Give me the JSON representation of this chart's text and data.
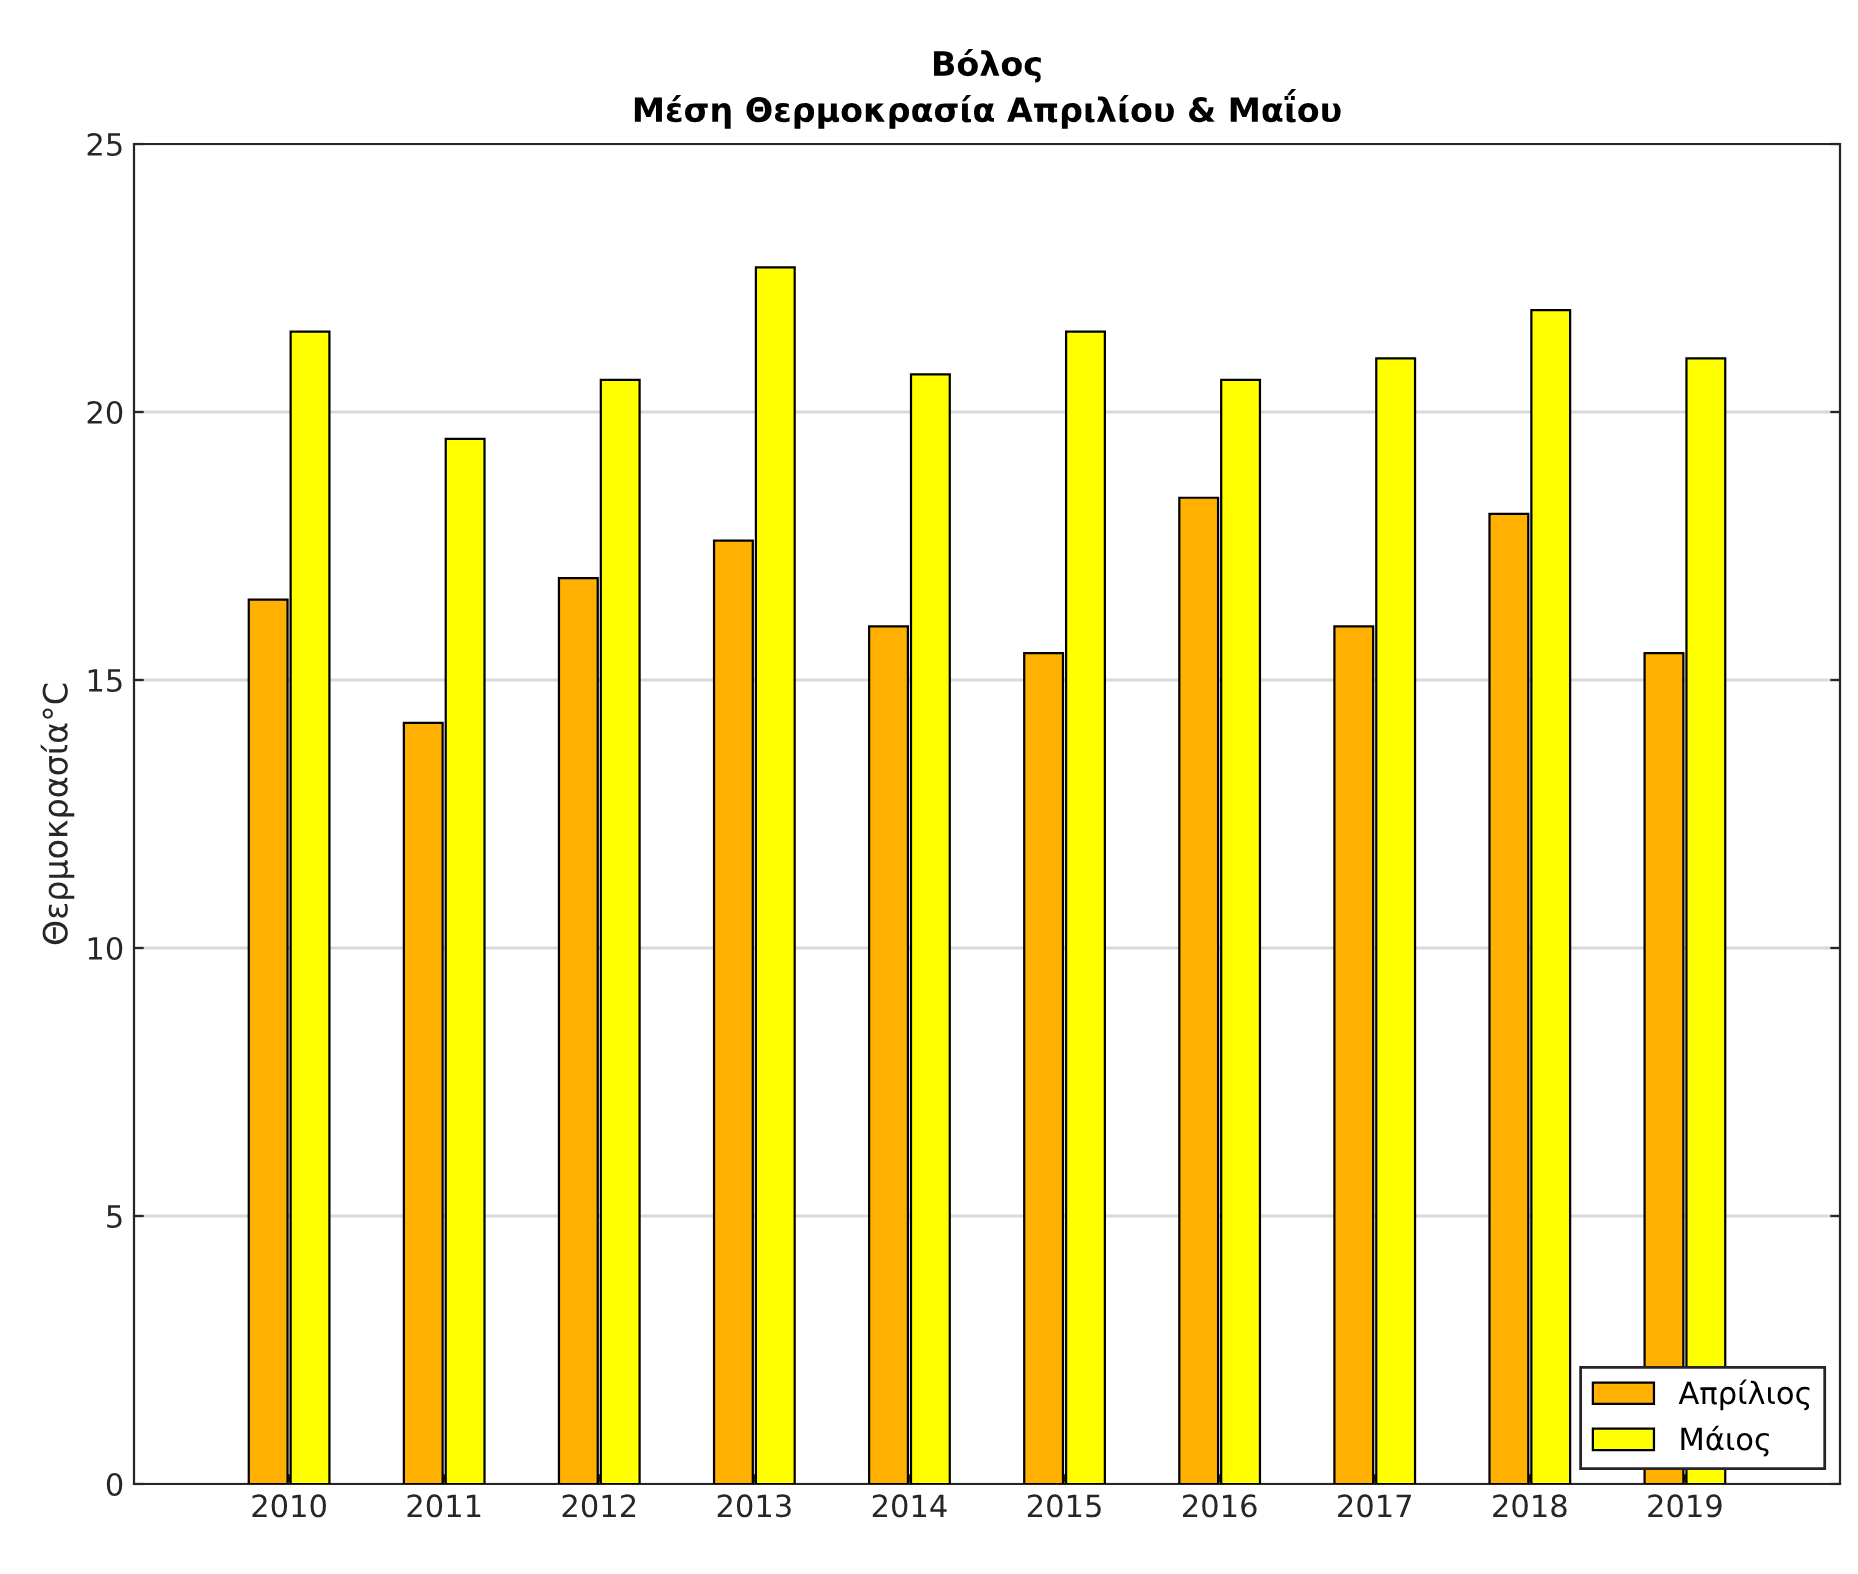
{
  "chart_data": {
    "type": "bar",
    "title": "Βόλος",
    "subtitle": "Μέση Θερμοκρασία Απριλίου & Μαΐου",
    "ylabel": "Θερμοκρασία°C",
    "categories": [
      "2010",
      "2011",
      "2012",
      "2013",
      "2014",
      "2015",
      "2016",
      "2017",
      "2018",
      "2019"
    ],
    "series": [
      {
        "name": "Απρίλιος",
        "color": "#ffb000",
        "values": [
          16.5,
          14.2,
          16.9,
          17.6,
          16.0,
          15.5,
          18.4,
          16.0,
          18.1,
          15.5
        ]
      },
      {
        "name": "Μάιος",
        "color": "#ffff00",
        "values": [
          21.5,
          19.5,
          20.6,
          22.7,
          20.7,
          21.5,
          20.6,
          21.0,
          21.9,
          21.0
        ]
      }
    ],
    "ylim": [
      0,
      25
    ],
    "yticks": [
      0,
      5,
      10,
      15,
      20,
      25
    ],
    "grid": "y",
    "legend": "bottom right"
  }
}
